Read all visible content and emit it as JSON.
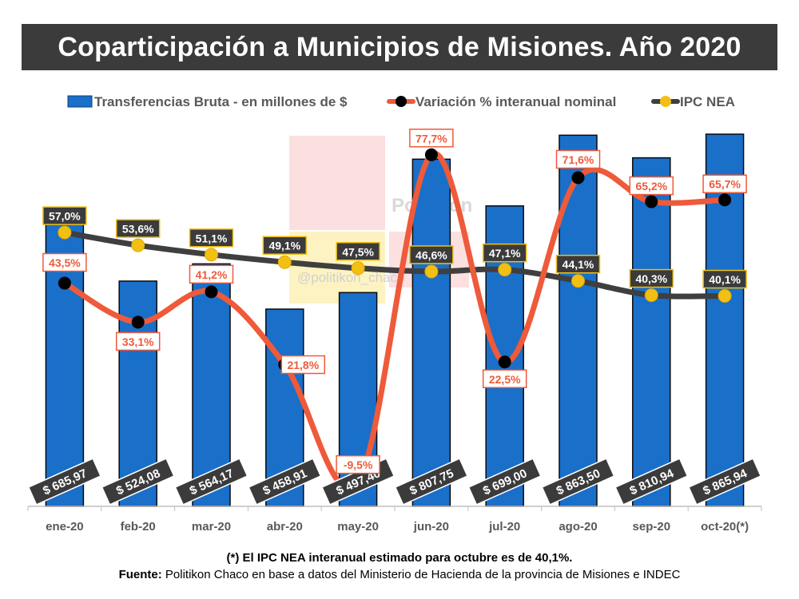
{
  "title": "Coparticipación a Municipios de Misiones. Año 2020",
  "footnotes": {
    "note": "(*) El IPC NEA interanual estimado para octubre es de 40,1%.",
    "source_label": "Fuente:",
    "source_text": " Politikon Chaco en base a datos del Ministerio de Hacienda de la provincia de Misiones  e INDEC"
  },
  "watermark": {
    "text": "Politikon",
    "handle": "@politikon_chaco"
  },
  "chart_data": {
    "type": "bar+line",
    "categories": [
      "ene-20",
      "feb-20",
      "mar-20",
      "abr-20",
      "may-20",
      "jun-20",
      "jul-20",
      "ago-20",
      "sep-20",
      "oct-20(*)"
    ],
    "legend_placement": "top",
    "grid": false,
    "series": [
      {
        "name": "Transferencias Bruta - en millones de $",
        "kind": "bar",
        "color": "#1a6fc9",
        "values": [
          685.97,
          524.08,
          564.17,
          458.91,
          497.4,
          807.75,
          699.0,
          863.5,
          810.94,
          865.94
        ],
        "labels": [
          "$ 685,97",
          "$ 524,08",
          "$ 564,17",
          "$ 458,91",
          "$ 497,40",
          "$ 807,75",
          "$ 699,00",
          "$ 863,50",
          "$ 810,94",
          "$ 865,94"
        ]
      },
      {
        "name": "Variación % interanual nominal",
        "kind": "line",
        "color": "#ee5a3a",
        "marker_color": "#000000",
        "values": [
          43.5,
          33.1,
          41.2,
          21.8,
          -9.5,
          77.7,
          22.5,
          71.6,
          65.2,
          65.7
        ],
        "labels": [
          "43,5%",
          "33,1%",
          "41,2%",
          "21,8%",
          "-9,5%",
          "77,7%",
          "22,5%",
          "71,6%",
          "65,2%",
          "65,7%"
        ]
      },
      {
        "name": "IPC NEA",
        "kind": "line",
        "color": "#3f3f3f",
        "marker_color": "#f2c014",
        "values": [
          57.0,
          53.6,
          51.1,
          49.1,
          47.5,
          46.6,
          47.1,
          44.1,
          40.3,
          40.1
        ],
        "labels": [
          "57,0%",
          "53,6%",
          "51,1%",
          "49,1%",
          "47,5%",
          "46,6%",
          "47,1%",
          "44,1%",
          "40,3%",
          "40,1%"
        ]
      }
    ]
  }
}
